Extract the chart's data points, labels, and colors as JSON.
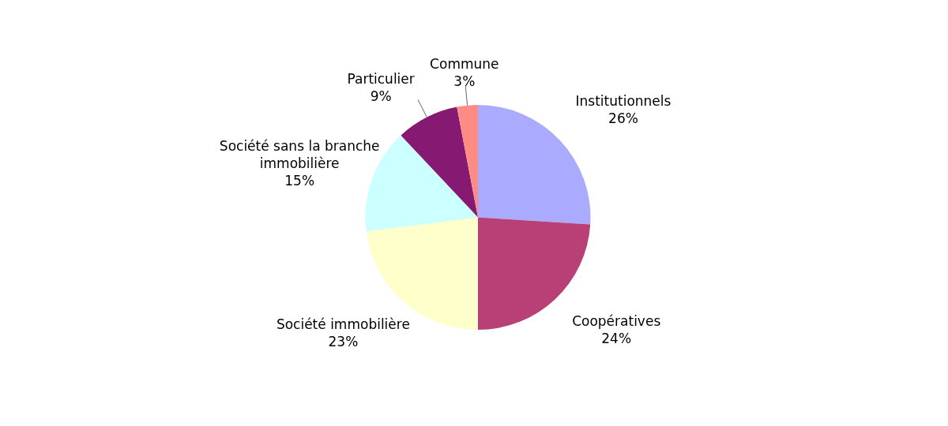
{
  "chart_data": {
    "type": "pie",
    "categories": [
      "Institutionnels",
      "Coopératives",
      "Société immobilière",
      "Société sans la branche immobilière",
      "Particulier",
      "Commune"
    ],
    "values": [
      26,
      24,
      23,
      15,
      9,
      3
    ],
    "colors": [
      "#aaaaff",
      "#b94077",
      "#ffffcc",
      "#ccffff",
      "#861a72",
      "#ff8c84"
    ],
    "value_labels": [
      "26%",
      "24%",
      "23%",
      "15%",
      "9%",
      "3%"
    ],
    "legend": false
  }
}
